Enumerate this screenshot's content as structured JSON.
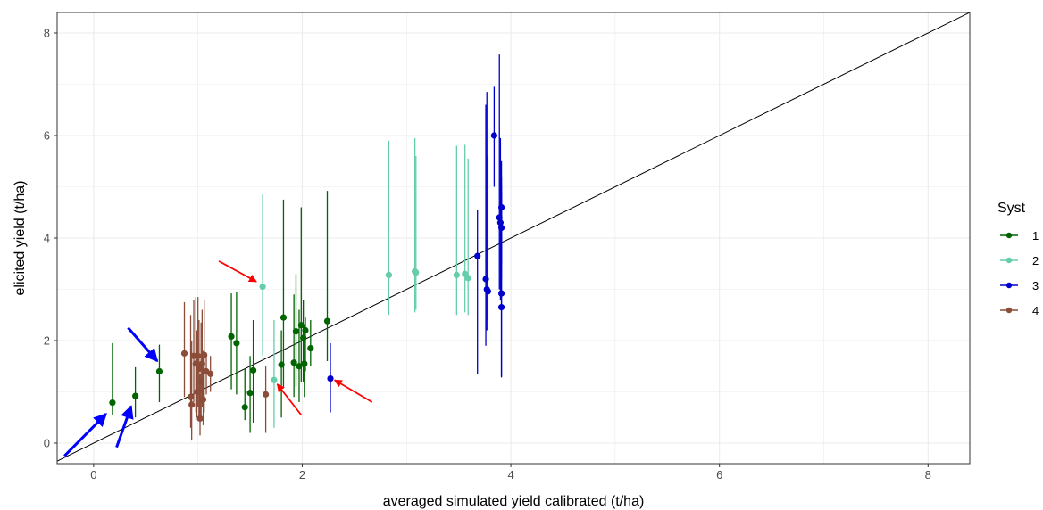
{
  "chart_data": {
    "type": "scatter",
    "title": "",
    "xlabel": "averaged simulated yield calibrated (t/ha)",
    "ylabel": "elicited yield (t/ha)",
    "xlim": [
      -0.35,
      8.4
    ],
    "ylim": [
      -0.4,
      8.4
    ],
    "x_ticks": [
      0,
      2,
      4,
      6,
      8
    ],
    "y_ticks": [
      0,
      2,
      4,
      6,
      8
    ],
    "grid": true,
    "legend": {
      "title": "Syst",
      "placement": "right",
      "entries": [
        "1",
        "2",
        "3",
        "4"
      ]
    },
    "reference_line": {
      "type": "identity",
      "color": "#000000"
    },
    "series": [
      {
        "name": "1",
        "color": "#006400",
        "points": [
          {
            "x": 0.18,
            "y": 0.79,
            "low": 0.55,
            "high": 1.95
          },
          {
            "x": 0.4,
            "y": 0.92,
            "low": 0.5,
            "high": 1.48
          },
          {
            "x": 0.63,
            "y": 1.4,
            "low": 0.8,
            "high": 1.92
          },
          {
            "x": 1.32,
            "y": 2.08,
            "low": 1.05,
            "high": 2.92
          },
          {
            "x": 1.37,
            "y": 1.95,
            "low": 0.95,
            "high": 2.95
          },
          {
            "x": 1.45,
            "y": 0.7,
            "low": 0.45,
            "high": 1.45
          },
          {
            "x": 1.5,
            "y": 0.98,
            "low": 0.2,
            "high": 1.7
          },
          {
            "x": 1.53,
            "y": 1.42,
            "low": 0.4,
            "high": 2.4
          },
          {
            "x": 1.8,
            "y": 1.53,
            "low": 0.5,
            "high": 2.2
          },
          {
            "x": 1.82,
            "y": 2.45,
            "low": 1.1,
            "high": 4.75
          },
          {
            "x": 1.92,
            "y": 1.57,
            "low": 0.9,
            "high": 2.9
          },
          {
            "x": 1.94,
            "y": 2.18,
            "low": 1.1,
            "high": 3.3
          },
          {
            "x": 1.97,
            "y": 1.5,
            "low": 0.8,
            "high": 2.6
          },
          {
            "x": 1.99,
            "y": 2.3,
            "low": 1.2,
            "high": 4.6
          },
          {
            "x": 2.01,
            "y": 2.05,
            "low": 1.2,
            "high": 2.8
          },
          {
            "x": 2.02,
            "y": 1.55,
            "low": 0.9,
            "high": 2.3
          },
          {
            "x": 2.03,
            "y": 2.2,
            "low": 1.4,
            "high": 2.45
          },
          {
            "x": 2.08,
            "y": 1.85,
            "low": 1.5,
            "high": 2.4
          },
          {
            "x": 2.24,
            "y": 2.38,
            "low": 1.6,
            "high": 4.92
          }
        ]
      },
      {
        "name": "2",
        "color": "#66CDAA",
        "points": [
          {
            "x": 1.62,
            "y": 3.05,
            "low": 1.7,
            "high": 4.85
          },
          {
            "x": 1.73,
            "y": 1.23,
            "low": 0.3,
            "high": 2.4
          },
          {
            "x": 2.83,
            "y": 3.28,
            "low": 2.5,
            "high": 5.9
          },
          {
            "x": 3.08,
            "y": 3.35,
            "low": 2.55,
            "high": 5.95
          },
          {
            "x": 3.09,
            "y": 3.33,
            "low": 2.6,
            "high": 5.6
          },
          {
            "x": 3.48,
            "y": 3.28,
            "low": 2.5,
            "high": 5.8
          },
          {
            "x": 3.56,
            "y": 3.3,
            "low": 2.55,
            "high": 5.82
          },
          {
            "x": 3.59,
            "y": 3.22,
            "low": 2.5,
            "high": 5.55
          }
        ]
      },
      {
        "name": "3",
        "color": "#0000CD",
        "points": [
          {
            "x": 2.27,
            "y": 1.26,
            "low": 0.6,
            "high": 1.95
          },
          {
            "x": 3.68,
            "y": 3.65,
            "low": 1.35,
            "high": 4.55
          },
          {
            "x": 3.76,
            "y": 3.2,
            "low": 1.9,
            "high": 6.6
          },
          {
            "x": 3.77,
            "y": 3.0,
            "low": 2.2,
            "high": 6.85
          },
          {
            "x": 3.78,
            "y": 2.96,
            "low": 2.4,
            "high": 5.6
          },
          {
            "x": 3.84,
            "y": 6.0,
            "low": 5.0,
            "high": 6.95
          },
          {
            "x": 3.89,
            "y": 4.4,
            "low": 3.0,
            "high": 7.58
          },
          {
            "x": 3.9,
            "y": 4.3,
            "low": 2.8,
            "high": 5.95
          },
          {
            "x": 3.91,
            "y": 4.6,
            "low": 3.5,
            "high": 5.5
          },
          {
            "x": 3.91,
            "y": 4.2,
            "low": 3.2,
            "high": 5.2
          },
          {
            "x": 3.91,
            "y": 2.92,
            "low": 1.3,
            "high": 4.9
          },
          {
            "x": 3.91,
            "y": 2.65,
            "low": 1.28,
            "high": 5.0
          }
        ]
      },
      {
        "name": "4",
        "color": "#8B4C39",
        "points": [
          {
            "x": 0.87,
            "y": 1.75,
            "low": 0.9,
            "high": 2.75
          },
          {
            "x": 0.93,
            "y": 0.9,
            "low": 0.3,
            "high": 2.5
          },
          {
            "x": 0.94,
            "y": 0.75,
            "low": 0.05,
            "high": 2.0
          },
          {
            "x": 0.96,
            "y": 1.7,
            "low": 0.8,
            "high": 2.8
          },
          {
            "x": 0.98,
            "y": 1.55,
            "low": 0.6,
            "high": 2.85
          },
          {
            "x": 0.99,
            "y": 1.0,
            "low": 0.5,
            "high": 2.2
          },
          {
            "x": 1.0,
            "y": 1.7,
            "low": 0.7,
            "high": 2.85
          },
          {
            "x": 1.01,
            "y": 1.45,
            "low": 0.45,
            "high": 2.4
          },
          {
            "x": 1.02,
            "y": 0.48,
            "low": 0.15,
            "high": 1.35
          },
          {
            "x": 1.03,
            "y": 1.2,
            "low": 0.5,
            "high": 2.35
          },
          {
            "x": 1.04,
            "y": 1.55,
            "low": 0.7,
            "high": 2.6
          },
          {
            "x": 1.05,
            "y": 0.85,
            "low": 0.35,
            "high": 1.8
          },
          {
            "x": 1.06,
            "y": 1.72,
            "low": 0.6,
            "high": 2.8
          },
          {
            "x": 1.08,
            "y": 1.4,
            "low": 0.95,
            "high": 1.7
          },
          {
            "x": 1.12,
            "y": 1.35,
            "low": 1.0,
            "high": 1.7
          },
          {
            "x": 1.65,
            "y": 0.95,
            "low": 0.2,
            "high": 1.5
          }
        ]
      }
    ],
    "annotations": [
      {
        "type": "arrow",
        "color": "#0000FF",
        "from": [
          -0.28,
          -0.25
        ],
        "to": [
          0.12,
          0.57
        ]
      },
      {
        "type": "arrow",
        "color": "#0000FF",
        "from": [
          0.22,
          -0.08
        ],
        "to": [
          0.36,
          0.72
        ]
      },
      {
        "type": "arrow",
        "color": "#0000FF",
        "from": [
          0.33,
          2.25
        ],
        "to": [
          0.61,
          1.6
        ]
      },
      {
        "type": "arrow",
        "color": "#FF0000",
        "from": [
          1.2,
          3.55
        ],
        "to": [
          1.56,
          3.15
        ]
      },
      {
        "type": "arrow",
        "color": "#FF0000",
        "from": [
          1.99,
          0.55
        ],
        "to": [
          1.76,
          1.15
        ]
      },
      {
        "type": "arrow",
        "color": "#FF0000",
        "from": [
          2.67,
          0.8
        ],
        "to": [
          2.31,
          1.23
        ]
      }
    ]
  }
}
